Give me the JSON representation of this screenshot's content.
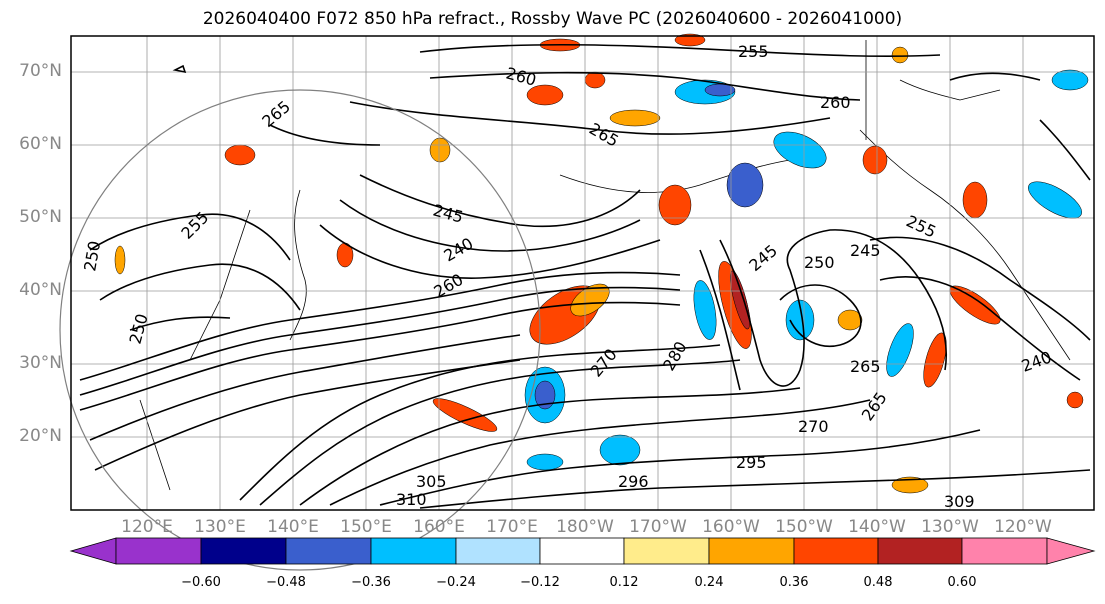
{
  "title": "2026040400 F072 850 hPa refract., Rossby Wave PC (2026040600 - 2026041000)",
  "lat_labels": [
    "70°N",
    "60°N",
    "50°N",
    "40°N",
    "30°N",
    "20°N"
  ],
  "lon_labels": [
    "120°E",
    "130°E",
    "140°E",
    "150°E",
    "160°E",
    "170°E",
    "180°W",
    "170°W",
    "160°W",
    "150°W",
    "140°W",
    "130°W",
    "120°W"
  ],
  "contour_labels": [
    "255",
    "260",
    "260",
    "265",
    "265",
    "245",
    "240",
    "255",
    "250",
    "260",
    "245",
    "250",
    "245",
    "255",
    "265",
    "270",
    "280",
    "265",
    "270",
    "295",
    "296",
    "305",
    "309",
    "310",
    "240",
    "250"
  ],
  "colorbar": {
    "tick_labels": [
      "−0.60",
      "−0.48",
      "−0.36",
      "−0.24",
      "−0.12",
      "0.12",
      "0.24",
      "0.36",
      "0.48",
      "0.60"
    ],
    "colors": [
      "#9932cc",
      "#00008b",
      "#3a5fcd",
      "#00bfff",
      "#b0e2ff",
      "#ffffff",
      "#ffec8b",
      "#ffa500",
      "#ff4500",
      "#b22222",
      "#ff82ab"
    ]
  }
}
